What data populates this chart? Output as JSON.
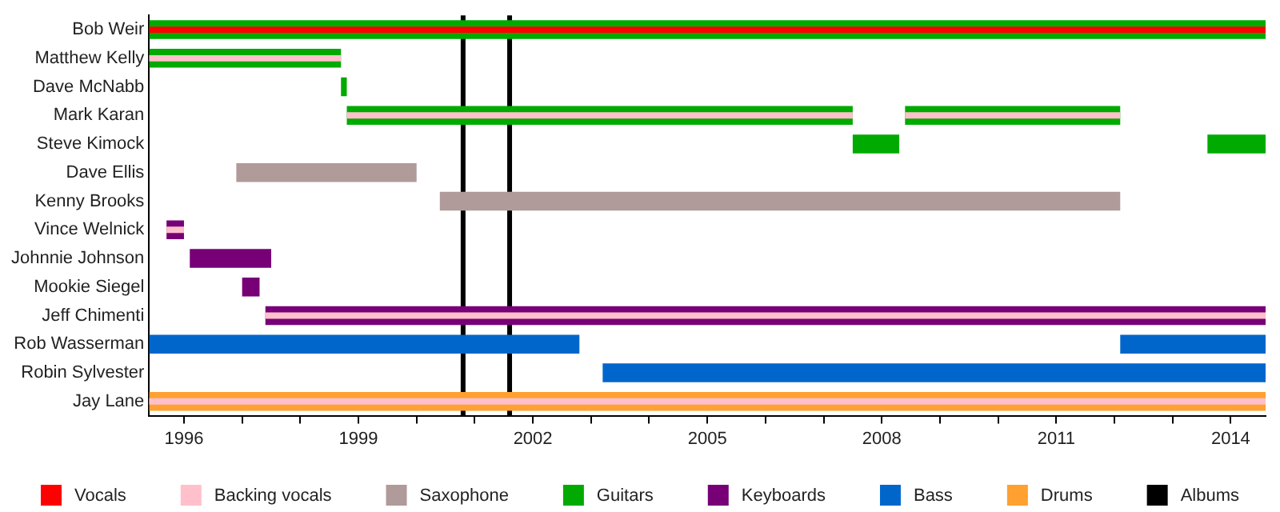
{
  "chart_data": {
    "type": "bar",
    "orientation": "horizontal",
    "legend": "bottom",
    "grid": false,
    "categories": [
      "Bob Weir",
      "Matthew Kelly",
      "Dave McNabb",
      "Mark Karan",
      "Steve Kimock",
      "Dave Ellis",
      "Kenny Brooks",
      "Vince Welnick",
      "Johnnie Johnson",
      "Mookie Siegel",
      "Jeff Chimenti",
      "Rob Wasserman",
      "Robin Sylvester",
      "Jay Lane"
    ],
    "xlim": [
      1995.4,
      2014.6
    ],
    "xticks": [
      1996,
      {
        "value": 1997,
        "label": null
      },
      {
        "value": 1998,
        "label": null
      },
      1999,
      {
        "value": 2000,
        "label": null
      },
      {
        "value": 2001,
        "label": null
      },
      2002,
      {
        "value": 2003,
        "label": null
      },
      {
        "value": 2004,
        "label": null
      },
      2005,
      {
        "value": 2006,
        "label": null
      },
      {
        "value": 2007,
        "label": null
      },
      2008,
      {
        "value": 2009,
        "label": null
      },
      {
        "value": 2010,
        "label": null
      },
      2011,
      {
        "value": 2012,
        "label": null
      },
      {
        "value": 2013,
        "label": null
      },
      2014
    ],
    "series": [
      {
        "name": "Vocals",
        "color": "#ff0000",
        "base": [
          1995.4,
          null,
          null,
          null,
          null,
          null,
          null,
          null,
          null,
          null,
          null,
          null,
          null,
          null
        ],
        "values": [
          19.2,
          null,
          null,
          null,
          null,
          null,
          null,
          null,
          null,
          null,
          null,
          null,
          null,
          null
        ]
      },
      {
        "name": "Backing vocals",
        "color": "#ffc0cb",
        "base": [
          null,
          1995.4,
          null,
          1998.8,
          null,
          null,
          null,
          1995.7,
          null,
          null,
          1997.4,
          null,
          null,
          1995.4
        ],
        "values": [
          null,
          3.3,
          null,
          8.7,
          null,
          null,
          null,
          0.3,
          null,
          null,
          17.2,
          null,
          null,
          19.2
        ]
      },
      {
        "name": "Saxophone",
        "color": "#b09a9a",
        "base": [
          null,
          null,
          null,
          null,
          null,
          1996.9,
          2000.4,
          null,
          null,
          null,
          null,
          null,
          null,
          null
        ],
        "values": [
          null,
          null,
          null,
          null,
          null,
          3.1,
          11.7,
          null,
          null,
          null,
          null,
          null,
          null,
          null
        ]
      },
      {
        "name": "Guitars",
        "color": "#00aa00",
        "base": [
          1995.4,
          1995.4,
          1998.7,
          1998.8,
          2007.5,
          null,
          null,
          null,
          null,
          null,
          null,
          null,
          null,
          null
        ],
        "values": [
          19.2,
          3.3,
          0.1,
          8.7,
          0.8,
          null,
          null,
          null,
          null,
          null,
          null,
          null,
          null,
          null
        ]
      },
      {
        "name": "Keyboards",
        "color": "#770077",
        "base": [
          null,
          null,
          null,
          null,
          null,
          null,
          null,
          1995.7,
          1996.1,
          1997.0,
          1997.4,
          null,
          null,
          null
        ],
        "values": [
          null,
          null,
          null,
          null,
          null,
          null,
          null,
          0.3,
          1.4,
          0.3,
          17.2,
          null,
          null,
          null
        ]
      },
      {
        "name": "Bass",
        "color": "#0066cc",
        "base": [
          null,
          null,
          null,
          null,
          null,
          null,
          null,
          null,
          null,
          null,
          null,
          1995.4,
          2003.2,
          null
        ],
        "values": [
          null,
          null,
          null,
          null,
          null,
          null,
          null,
          null,
          null,
          null,
          null,
          7.4,
          11.4,
          null
        ]
      },
      {
        "name": "Drums",
        "color": "#ffa030",
        "base": [
          null,
          null,
          null,
          null,
          null,
          null,
          null,
          null,
          null,
          null,
          null,
          null,
          null,
          1995.4
        ],
        "values": [
          null,
          null,
          null,
          null,
          null,
          null,
          null,
          null,
          null,
          null,
          null,
          null,
          null,
          19.2
        ]
      },
      {
        "color": "#ffc0cb",
        "base": [
          null,
          null,
          null,
          2008.4,
          null,
          null,
          null,
          null,
          null,
          null,
          null,
          null,
          null,
          null
        ],
        "values": [
          null,
          null,
          null,
          3.7,
          null,
          null,
          null,
          null,
          null,
          null,
          null,
          null,
          null,
          null
        ]
      },
      {
        "color": "#00aa00",
        "base": [
          null,
          null,
          null,
          2008.4,
          2013.6,
          null,
          null,
          null,
          null,
          null,
          null,
          null,
          null,
          null
        ],
        "values": [
          null,
          null,
          null,
          3.7,
          1.0,
          null,
          null,
          null,
          null,
          null,
          null,
          null,
          null,
          null
        ]
      },
      {
        "color": "#0066cc",
        "base": [
          null,
          null,
          null,
          null,
          null,
          null,
          null,
          null,
          null,
          null,
          null,
          2012.1,
          null,
          null
        ],
        "values": [
          null,
          null,
          null,
          null,
          null,
          null,
          null,
          null,
          null,
          null,
          null,
          2.5,
          null,
          null
        ]
      }
    ],
    "ref_lines": [
      {
        "axis": "x",
        "value": 2000.8,
        "label": "Albums",
        "color": "#000000"
      },
      {
        "axis": "x",
        "value": 2001.6,
        "color": "#000000"
      }
    ]
  }
}
